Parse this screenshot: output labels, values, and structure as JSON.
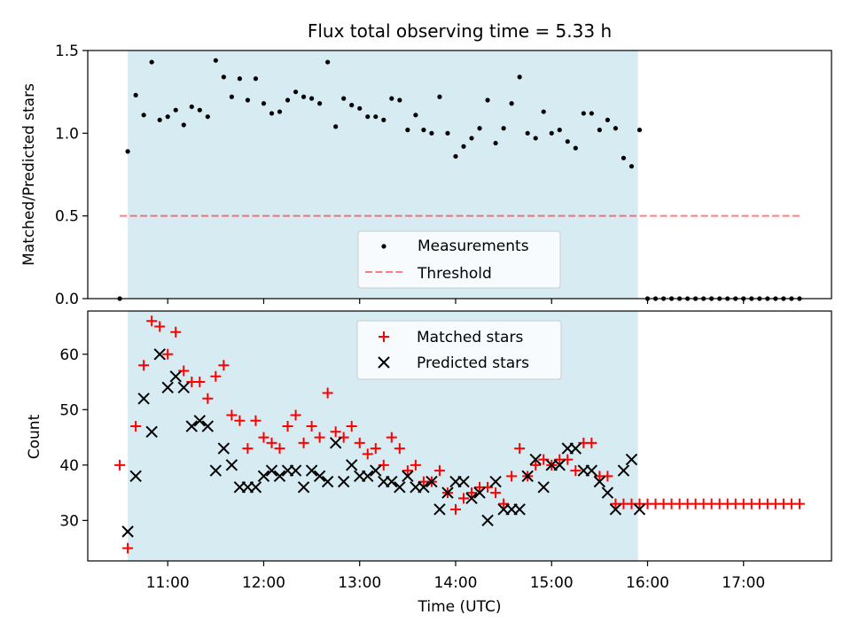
{
  "title": "Flux total observing time = 5.33 h",
  "colors": {
    "shade": "#add8e6",
    "measurement": "#000000",
    "threshold": "#ff0000",
    "matched": "#ff0000",
    "predicted": "#000000"
  },
  "chart_data": [
    {
      "type": "scatter",
      "id": "ratio",
      "ylabel": "Matched/Predicted stars",
      "xlim": [
        "10:10",
        "17:55"
      ],
      "ylim": [
        0,
        1.5
      ],
      "y_ticks": [
        0.0,
        0.5,
        1.0,
        1.5
      ],
      "y_tick_labels": [
        "0.0",
        "0.5",
        "1.0",
        "1.5"
      ],
      "x_ticks": [
        "11:00",
        "12:00",
        "13:00",
        "14:00",
        "15:00",
        "16:00",
        "17:00"
      ],
      "shaded_span": [
        "10:35",
        "15:54"
      ],
      "grid": false,
      "legend_placement": "lower-center",
      "legend": [
        "Measurements",
        "Threshold"
      ],
      "threshold": {
        "y": 0.5,
        "x_range": [
          "10:30",
          "17:35"
        ]
      },
      "series": [
        {
          "name": "Measurements",
          "marker": "dot",
          "points": [
            [
              "10:30",
              0.0
            ],
            [
              "10:35",
              0.89
            ],
            [
              "10:40",
              1.23
            ],
            [
              "10:45",
              1.11
            ],
            [
              "10:50",
              1.43
            ],
            [
              "10:55",
              1.08
            ],
            [
              "11:00",
              1.1
            ],
            [
              "11:05",
              1.14
            ],
            [
              "11:10",
              1.05
            ],
            [
              "11:15",
              1.16
            ],
            [
              "11:20",
              1.14
            ],
            [
              "11:25",
              1.1
            ],
            [
              "11:30",
              1.44
            ],
            [
              "11:35",
              1.34
            ],
            [
              "11:40",
              1.22
            ],
            [
              "11:45",
              1.33
            ],
            [
              "11:50",
              1.2
            ],
            [
              "11:55",
              1.33
            ],
            [
              "12:00",
              1.18
            ],
            [
              "12:05",
              1.12
            ],
            [
              "12:10",
              1.13
            ],
            [
              "12:15",
              1.2
            ],
            [
              "12:20",
              1.25
            ],
            [
              "12:25",
              1.22
            ],
            [
              "12:30",
              1.21
            ],
            [
              "12:35",
              1.18
            ],
            [
              "12:40",
              1.43
            ],
            [
              "12:45",
              1.04
            ],
            [
              "12:50",
              1.21
            ],
            [
              "12:55",
              1.17
            ],
            [
              "13:00",
              1.15
            ],
            [
              "13:05",
              1.1
            ],
            [
              "13:10",
              1.1
            ],
            [
              "13:15",
              1.08
            ],
            [
              "13:20",
              1.21
            ],
            [
              "13:25",
              1.2
            ],
            [
              "13:30",
              1.02
            ],
            [
              "13:35",
              1.11
            ],
            [
              "13:40",
              1.02
            ],
            [
              "13:45",
              1.0
            ],
            [
              "13:50",
              1.22
            ],
            [
              "13:55",
              1.0
            ],
            [
              "14:00",
              0.86
            ],
            [
              "14:05",
              0.92
            ],
            [
              "14:10",
              0.97
            ],
            [
              "14:15",
              1.03
            ],
            [
              "14:20",
              1.2
            ],
            [
              "14:25",
              0.94
            ],
            [
              "14:30",
              1.03
            ],
            [
              "14:35",
              1.18
            ],
            [
              "14:40",
              1.34
            ],
            [
              "14:45",
              1.0
            ],
            [
              "14:50",
              0.97
            ],
            [
              "14:55",
              1.13
            ],
            [
              "15:00",
              1.0
            ],
            [
              "15:05",
              1.02
            ],
            [
              "15:10",
              0.95
            ],
            [
              "15:15",
              0.91
            ],
            [
              "15:20",
              1.12
            ],
            [
              "15:25",
              1.12
            ],
            [
              "15:30",
              1.02
            ],
            [
              "15:35",
              1.08
            ],
            [
              "15:40",
              1.03
            ],
            [
              "15:45",
              0.85
            ],
            [
              "15:50",
              0.8
            ],
            [
              "15:55",
              1.02
            ],
            [
              "16:00",
              0.0
            ],
            [
              "16:05",
              0.0
            ],
            [
              "16:10",
              0.0
            ],
            [
              "16:15",
              0.0
            ],
            [
              "16:20",
              0.0
            ],
            [
              "16:25",
              0.0
            ],
            [
              "16:30",
              0.0
            ],
            [
              "16:35",
              0.0
            ],
            [
              "16:40",
              0.0
            ],
            [
              "16:45",
              0.0
            ],
            [
              "16:50",
              0.0
            ],
            [
              "16:55",
              0.0
            ],
            [
              "17:00",
              0.0
            ],
            [
              "17:05",
              0.0
            ],
            [
              "17:10",
              0.0
            ],
            [
              "17:15",
              0.0
            ],
            [
              "17:20",
              0.0
            ],
            [
              "17:25",
              0.0
            ],
            [
              "17:30",
              0.0
            ],
            [
              "17:35",
              0.0
            ]
          ]
        }
      ]
    },
    {
      "type": "scatter",
      "id": "counts",
      "xlabel": "Time (UTC)",
      "ylabel": "Count",
      "xlim": [
        "10:10",
        "17:55"
      ],
      "ylim": [
        22.7,
        67.8
      ],
      "y_ticks": [
        30,
        40,
        50,
        60
      ],
      "y_tick_labels": [
        "30",
        "40",
        "50",
        "60"
      ],
      "x_ticks": [
        "11:00",
        "12:00",
        "13:00",
        "14:00",
        "15:00",
        "16:00",
        "17:00"
      ],
      "x_tick_labels": [
        "11:00",
        "12:00",
        "13:00",
        "14:00",
        "15:00",
        "16:00",
        "17:00"
      ],
      "shaded_span": [
        "10:35",
        "15:54"
      ],
      "grid": false,
      "legend_placement": "upper-center",
      "legend": [
        "Matched stars",
        "Predicted stars"
      ],
      "series": [
        {
          "name": "Matched stars",
          "marker": "plus",
          "points": [
            [
              "10:30",
              40
            ],
            [
              "10:35",
              25
            ],
            [
              "10:40",
              47
            ],
            [
              "10:45",
              58
            ],
            [
              "10:50",
              66
            ],
            [
              "10:55",
              65
            ],
            [
              "11:00",
              60
            ],
            [
              "11:05",
              64
            ],
            [
              "11:10",
              57
            ],
            [
              "11:15",
              55
            ],
            [
              "11:20",
              55
            ],
            [
              "11:25",
              52
            ],
            [
              "11:30",
              56
            ],
            [
              "11:35",
              58
            ],
            [
              "11:40",
              49
            ],
            [
              "11:45",
              48
            ],
            [
              "11:50",
              43
            ],
            [
              "11:55",
              48
            ],
            [
              "12:00",
              45
            ],
            [
              "12:05",
              44
            ],
            [
              "12:10",
              43
            ],
            [
              "12:15",
              47
            ],
            [
              "12:20",
              49
            ],
            [
              "12:25",
              44
            ],
            [
              "12:30",
              47
            ],
            [
              "12:35",
              45
            ],
            [
              "12:40",
              53
            ],
            [
              "12:45",
              46
            ],
            [
              "12:50",
              45
            ],
            [
              "12:55",
              47
            ],
            [
              "13:00",
              44
            ],
            [
              "13:05",
              42
            ],
            [
              "13:10",
              43
            ],
            [
              "13:15",
              40
            ],
            [
              "13:20",
              45
            ],
            [
              "13:25",
              43
            ],
            [
              "13:30",
              39
            ],
            [
              "13:35",
              40
            ],
            [
              "13:40",
              37
            ],
            [
              "13:45",
              37
            ],
            [
              "13:50",
              39
            ],
            [
              "13:55",
              35
            ],
            [
              "14:00",
              32
            ],
            [
              "14:05",
              34
            ],
            [
              "14:10",
              35
            ],
            [
              "14:15",
              36
            ],
            [
              "14:20",
              36
            ],
            [
              "14:25",
              35
            ],
            [
              "14:30",
              33
            ],
            [
              "14:35",
              38
            ],
            [
              "14:40",
              43
            ],
            [
              "14:45",
              38
            ],
            [
              "14:50",
              40
            ],
            [
              "14:55",
              41
            ],
            [
              "15:00",
              40
            ],
            [
              "15:05",
              41
            ],
            [
              "15:10",
              41
            ],
            [
              "15:15",
              39
            ],
            [
              "15:20",
              44
            ],
            [
              "15:25",
              44
            ],
            [
              "15:30",
              38
            ],
            [
              "15:35",
              38
            ],
            [
              "15:40",
              33
            ],
            [
              "15:45",
              33
            ],
            [
              "15:50",
              33
            ],
            [
              "15:55",
              33
            ],
            [
              "16:00",
              33
            ],
            [
              "16:05",
              33
            ],
            [
              "16:10",
              33
            ],
            [
              "16:15",
              33
            ],
            [
              "16:20",
              33
            ],
            [
              "16:25",
              33
            ],
            [
              "16:30",
              33
            ],
            [
              "16:35",
              33
            ],
            [
              "16:40",
              33
            ],
            [
              "16:45",
              33
            ],
            [
              "16:50",
              33
            ],
            [
              "16:55",
              33
            ],
            [
              "17:00",
              33
            ],
            [
              "17:05",
              33
            ],
            [
              "17:10",
              33
            ],
            [
              "17:15",
              33
            ],
            [
              "17:20",
              33
            ],
            [
              "17:25",
              33
            ],
            [
              "17:30",
              33
            ],
            [
              "17:35",
              33
            ]
          ]
        },
        {
          "name": "Predicted stars",
          "marker": "x",
          "points": [
            [
              "10:35",
              28
            ],
            [
              "10:40",
              38
            ],
            [
              "10:45",
              52
            ],
            [
              "10:50",
              46
            ],
            [
              "10:55",
              60
            ],
            [
              "11:00",
              54
            ],
            [
              "11:05",
              56
            ],
            [
              "11:10",
              54
            ],
            [
              "11:15",
              47
            ],
            [
              "11:20",
              48
            ],
            [
              "11:25",
              47
            ],
            [
              "11:30",
              39
            ],
            [
              "11:35",
              43
            ],
            [
              "11:40",
              40
            ],
            [
              "11:45",
              36
            ],
            [
              "11:50",
              36
            ],
            [
              "11:55",
              36
            ],
            [
              "12:00",
              38
            ],
            [
              "12:05",
              39
            ],
            [
              "12:10",
              38
            ],
            [
              "12:15",
              39
            ],
            [
              "12:20",
              39
            ],
            [
              "12:25",
              36
            ],
            [
              "12:30",
              39
            ],
            [
              "12:35",
              38
            ],
            [
              "12:40",
              37
            ],
            [
              "12:45",
              44
            ],
            [
              "12:50",
              37
            ],
            [
              "12:55",
              40
            ],
            [
              "13:00",
              38
            ],
            [
              "13:05",
              38
            ],
            [
              "13:10",
              39
            ],
            [
              "13:15",
              37
            ],
            [
              "13:20",
              37
            ],
            [
              "13:25",
              36
            ],
            [
              "13:30",
              38
            ],
            [
              "13:35",
              36
            ],
            [
              "13:40",
              36
            ],
            [
              "13:45",
              37
            ],
            [
              "13:50",
              32
            ],
            [
              "13:55",
              35
            ],
            [
              "14:00",
              37
            ],
            [
              "14:05",
              37
            ],
            [
              "14:10",
              34
            ],
            [
              "14:15",
              35
            ],
            [
              "14:20",
              30
            ],
            [
              "14:25",
              37
            ],
            [
              "14:30",
              32
            ],
            [
              "14:35",
              32
            ],
            [
              "14:40",
              32
            ],
            [
              "14:45",
              38
            ],
            [
              "14:50",
              41
            ],
            [
              "14:55",
              36
            ],
            [
              "15:00",
              40
            ],
            [
              "15:05",
              40
            ],
            [
              "15:10",
              43
            ],
            [
              "15:15",
              43
            ],
            [
              "15:20",
              39
            ],
            [
              "15:25",
              39
            ],
            [
              "15:30",
              37
            ],
            [
              "15:35",
              35
            ],
            [
              "15:40",
              32
            ],
            [
              "15:45",
              39
            ],
            [
              "15:50",
              41
            ],
            [
              "15:55",
              32
            ]
          ]
        }
      ]
    }
  ]
}
